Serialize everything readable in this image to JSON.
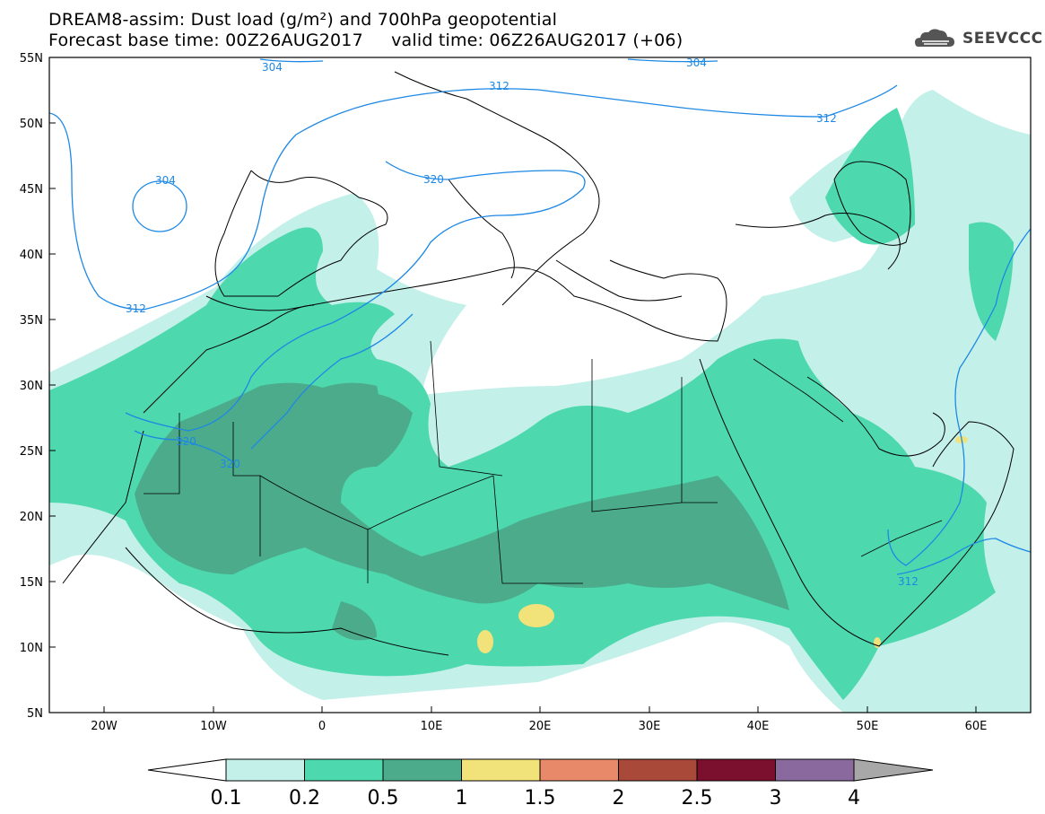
{
  "title": {
    "line1": "DREAM8-assim: Dust load (g/m²) and 700hPa geopotential",
    "line2": "Forecast base time: 00Z26AUG2017     valid time: 06Z26AUG2017 (+06)"
  },
  "logo": {
    "text": "SEEVCCC",
    "icon": "cloud-icon"
  },
  "map": {
    "lat_labels": [
      "55N",
      "50N",
      "45N",
      "40N",
      "35N",
      "30N",
      "25N",
      "20N",
      "15N",
      "10N",
      "5N"
    ],
    "lon_labels": [
      "20W",
      "10W",
      "0",
      "10E",
      "20E",
      "30E",
      "40E",
      "50E",
      "60E"
    ],
    "contour_labels": [
      {
        "text": "304"
      },
      {
        "text": "304"
      },
      {
        "text": "312"
      },
      {
        "text": "312"
      },
      {
        "text": "304"
      },
      {
        "text": "320"
      },
      {
        "text": "312"
      },
      {
        "text": "320"
      },
      {
        "text": "320"
      },
      {
        "text": "312"
      }
    ],
    "dust_colors": {
      "low": "#c4f0ea",
      "mid": "#4ed8ad",
      "high": "#4bab8a",
      "peak": "#f2e27a",
      "contour": "#1e88e5"
    }
  },
  "colorbar": {
    "ticks": [
      "0.1",
      "0.2",
      "0.5",
      "1",
      "1.5",
      "2",
      "2.5",
      "3",
      "4"
    ],
    "colors": [
      "#ffffff",
      "#c4f0ea",
      "#4ed8ad",
      "#4bab8a",
      "#f2e27a",
      "#e8896a",
      "#a8493a",
      "#7a0f2e",
      "#8a6a9e",
      "#a8a8a8"
    ]
  }
}
